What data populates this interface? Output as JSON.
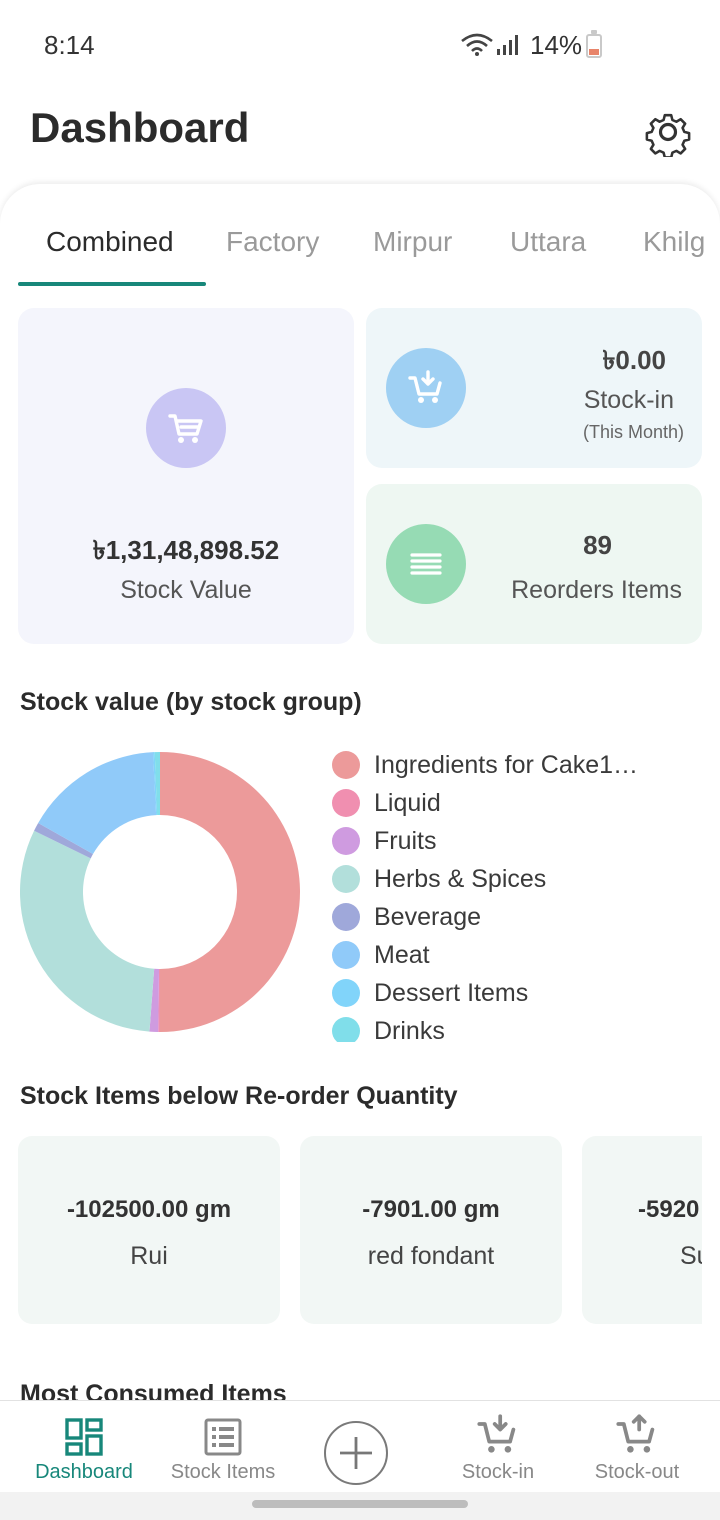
{
  "status_bar": {
    "time": "8:14",
    "battery": "14%"
  },
  "header": {
    "title": "Dashboard"
  },
  "tabs": [
    {
      "label": "Combined",
      "active": true
    },
    {
      "label": "Factory",
      "active": false
    },
    {
      "label": "Mirpur",
      "active": false
    },
    {
      "label": "Uttara",
      "active": false
    },
    {
      "label": "Khilg",
      "active": false
    }
  ],
  "summary": {
    "stock_value": "৳1,31,48,898.52",
    "stock_value_label": "Stock Value",
    "stock_in_value": "৳0.00",
    "stock_in_label": "Stock-in",
    "stock_in_period": "(This Month)",
    "reorder_count": "89",
    "reorder_label": "Reorders Items"
  },
  "stock_group_section": {
    "title": "Stock value (by stock group)"
  },
  "chart_data": {
    "type": "pie",
    "donut": true,
    "title": "",
    "labels": [
      "Ingredients for Cake1…",
      "Liquid",
      "Fruits",
      "Herbs & Spices",
      "Beverage",
      "Meat",
      "Dessert Items",
      "Drinks",
      ""
    ],
    "values": [
      50,
      0.2,
      1,
      31,
      1,
      16,
      0.2,
      0.6,
      0
    ],
    "colors": [
      "#ec9a9a",
      "#f08fb0",
      "#cf9be0",
      "#b2dfdb",
      "#9fa8da",
      "#90caf9",
      "#81d4fa",
      "#80deea",
      "#80cbc4"
    ],
    "legend_position": "right"
  },
  "reorder_section": {
    "title": "Stock Items below Re-order Quantity",
    "items": [
      {
        "qty": "-102500.00 gm",
        "name": "Rui"
      },
      {
        "qty": "-7901.00 gm",
        "name": "red fondant"
      },
      {
        "qty": "-5920",
        "name": "Su"
      }
    ]
  },
  "consumed_section": {
    "title": "Most Consumed Items"
  },
  "bottom_nav": {
    "items": [
      {
        "label": "Dashboard",
        "icon": "dashboard-icon",
        "active": true
      },
      {
        "label": "Stock Items",
        "icon": "list-icon",
        "active": false
      },
      {
        "label": "",
        "icon": "add-icon",
        "active": false
      },
      {
        "label": "Stock-in",
        "icon": "cart-down-icon",
        "active": false
      },
      {
        "label": "Stock-out",
        "icon": "cart-up-icon",
        "active": false
      }
    ]
  },
  "colors": {
    "accent": "#17877a"
  }
}
